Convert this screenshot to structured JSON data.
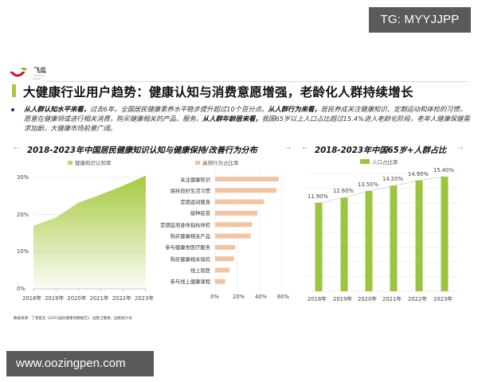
{
  "watermarks": {
    "top_right": "TG: MYYJJPP",
    "bottom_left": "www.oozingpen.com"
  },
  "logo": {
    "name": "飞瓜",
    "subtitle": "FEIGUA DATA",
    "icon": "feigua-logo-icon",
    "colors": {
      "bowl": "#c8102e",
      "leaf": "#7dbb2b"
    }
  },
  "header": {
    "title": "大健康行业用户趋势：健康认知与消费意愿增强，老龄化人群持续增长",
    "accent_color": "#a6c93f"
  },
  "summary": {
    "segments": [
      {
        "bold": true,
        "text": "从人群认知水平来看，"
      },
      {
        "bold": false,
        "text": "过去6年，全国居民健康素养水平稳步提升超过10个百分点。"
      },
      {
        "bold": true,
        "text": "从人群行为来看，"
      },
      {
        "bold": false,
        "text": "居民养成关注健康知识、定期运动和体检的习惯，愿意在健康领或进行相关消费，购买健康相关的产品、服务。"
      },
      {
        "bold": true,
        "text": "从人群年龄层来看，"
      },
      {
        "bold": false,
        "text": "我国65岁以上人口占比超过15.4%进入老龄化阶段，老年人健康保健需求加剧，大健康市场前景广阔。"
      }
    ]
  },
  "sections": {
    "left_title": "2018-2023年中国居民健康知识认知与健康保持/改善行为分布",
    "right_title": "2018-2023年中国65岁+人群占比",
    "arrow_left": "←",
    "arrow_right": "→"
  },
  "source": "数据来源：丁香医生《2023国民健康洞察报告》、国家卫健委、国家统计局",
  "chart_data": [
    {
      "type": "area",
      "title": "健康知识认知率",
      "legend": [
        "健康知识认知率"
      ],
      "categories": [
        "2018年",
        "2019年",
        "2020年",
        "2021年",
        "2022年",
        "2023年"
      ],
      "values": [
        17.0,
        19.2,
        23.2,
        25.4,
        27.8,
        30.5
      ],
      "yticks": [
        "0%",
        "10%",
        "20%",
        "30%"
      ],
      "ylim": [
        0,
        30
      ],
      "color": "#a6c93f",
      "grid": true,
      "legend_position": "top"
    },
    {
      "type": "bar",
      "orientation": "horizontal",
      "title": "高频行为占比率",
      "legend": [
        "高频行为占比率"
      ],
      "categories": [
        "关注健康知识",
        "保持良好生活习惯",
        "定期运动健身",
        "接种疫苗",
        "定期监测身体指标体检",
        "购买健康相关产品",
        "参与健康类医疗服务",
        "购买健康相关保险",
        "线上就医",
        "参与线上健康课程"
      ],
      "values": [
        57,
        55,
        44,
        38,
        33,
        32,
        18,
        17,
        13,
        9
      ],
      "xticks": [
        "0%",
        "20%",
        "40%",
        "60%"
      ],
      "xlim": [
        0,
        60
      ],
      "color": "#f2c4a4",
      "grid": true,
      "legend_position": "top"
    },
    {
      "type": "bar",
      "title": "人口占比率",
      "legend": [
        "人口占比率"
      ],
      "categories": [
        "2018年",
        "2019年",
        "2020年",
        "2021年",
        "2022年",
        "2023年"
      ],
      "values": [
        11.9,
        12.6,
        13.5,
        14.2,
        14.9,
        15.4
      ],
      "data_labels": [
        "11.90%",
        "12.60%",
        "13.50%",
        "14.20%",
        "14.90%",
        "15.40%"
      ],
      "color": "#9bc53d",
      "trendline": "dashed",
      "grid": true,
      "legend_position": "top"
    }
  ]
}
